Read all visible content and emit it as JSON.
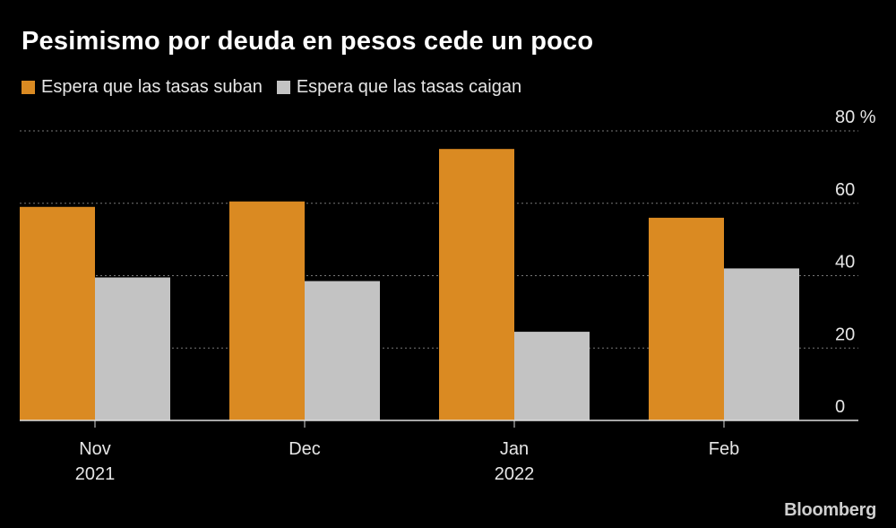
{
  "title": "Pesimismo por deuda en pesos cede un poco",
  "brand": "Bloomberg",
  "colors": {
    "suben": "#DA8A22",
    "caigan": "#C3C3C3",
    "background": "#000000"
  },
  "chart_data": {
    "type": "bar",
    "categories": [
      "Nov\n2021",
      "Dec",
      "Jan\n2022",
      "Feb"
    ],
    "series": [
      {
        "name": "Espera que las tasas suban",
        "values": [
          59,
          60.5,
          75,
          56
        ]
      },
      {
        "name": "Espera que las tasas caigan",
        "values": [
          39.5,
          38.5,
          24.5,
          42
        ]
      }
    ],
    "ylim": [
      0,
      80
    ],
    "yticks": [
      0,
      20,
      40,
      60,
      80
    ],
    "y_unit": "%",
    "grid": true,
    "legend": "top-left"
  }
}
